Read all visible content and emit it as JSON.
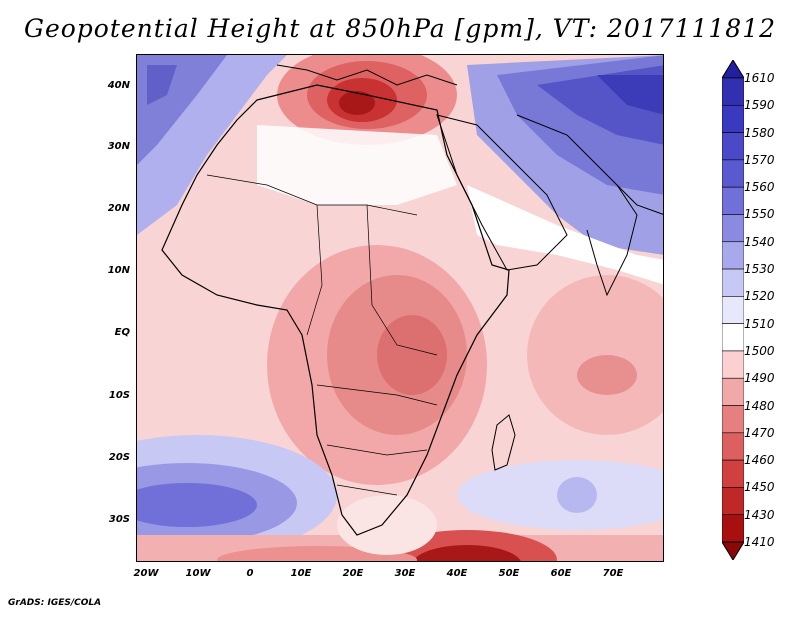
{
  "title": "Geopotential Height at 850hPa [gpm], VT: 2017111812",
  "credit": "GrADS: IGES/COLA",
  "lat_labels": [
    "40N",
    "30N",
    "20N",
    "10N",
    "EQ",
    "10S",
    "20S",
    "30S"
  ],
  "lon_labels": [
    "20W",
    "10W",
    "0",
    "10E",
    "20E",
    "30E",
    "40E",
    "50E",
    "60E",
    "70E"
  ],
  "colorbar": {
    "levels": [
      "1610",
      "1590",
      "1580",
      "1570",
      "1560",
      "1550",
      "1540",
      "1530",
      "1520",
      "1510",
      "1500",
      "1490",
      "1480",
      "1470",
      "1460",
      "1450",
      "1430",
      "1410"
    ],
    "colors": [
      "#2020a0",
      "#3030b0",
      "#3a3ac0",
      "#4a4ac8",
      "#5a5ad0",
      "#7070d8",
      "#8a8ae0",
      "#a8a8ec",
      "#c8c8f4",
      "#e8e8fc",
      "#ffffff",
      "#fad0d0",
      "#f0a8a8",
      "#e68080",
      "#dc6060",
      "#d04040",
      "#c02828",
      "#a81010",
      "#8a0808"
    ]
  }
}
